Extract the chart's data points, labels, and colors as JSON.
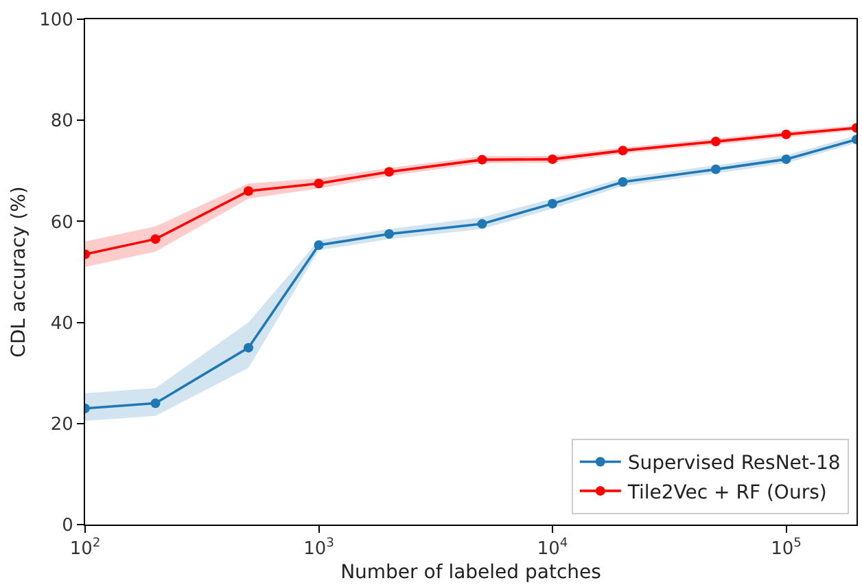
{
  "chart_data": {
    "type": "line",
    "xlabel": "Number of labeled patches",
    "ylabel": "CDL accuracy (%)",
    "log": "x",
    "x": [
      100,
      200,
      500,
      1000,
      2000,
      5000,
      10000,
      20000,
      50000,
      100000,
      200000
    ],
    "xlim": [
      100,
      200000
    ],
    "xticks": [
      {
        "value": 100,
        "label": "10$^{2}$"
      },
      {
        "value": 1000,
        "label": "10$^{3}$"
      },
      {
        "value": 10000,
        "label": "10$^{4}$"
      },
      {
        "value": 100000,
        "label": "10$^{5}$"
      }
    ],
    "ylim": [
      0,
      100
    ],
    "yticks": [
      0,
      20,
      40,
      60,
      80,
      100
    ],
    "legend": "bottom right",
    "marker": "circle",
    "line_style": "solid",
    "series": [
      {
        "name": "Supervised ResNet-18",
        "color": "#1f77b4",
        "values": [
          23,
          24,
          35,
          55.3,
          57.5,
          59.5,
          63.5,
          67.8,
          70.3,
          72.3,
          76.2
        ],
        "lower": [
          20.5,
          21.5,
          31,
          54.3,
          56.5,
          58.5,
          62.5,
          67,
          69.5,
          71.5,
          75.5
        ],
        "upper": [
          26,
          27,
          40,
          56.3,
          58.5,
          60.8,
          64.5,
          68.6,
          71.1,
          73.1,
          77
        ]
      },
      {
        "name": "Tile2Vec + RF (Ours)",
        "color": "#ff0000",
        "values": [
          53.5,
          56.5,
          66,
          67.5,
          69.8,
          72.2,
          72.3,
          74,
          75.8,
          77.2,
          78.5
        ],
        "lower": [
          51,
          54,
          64.5,
          66.5,
          69,
          71.5,
          71.6,
          73.4,
          75.2,
          76.6,
          78
        ],
        "upper": [
          56,
          59,
          67.5,
          68.5,
          70.6,
          72.9,
          73,
          74.6,
          76.4,
          77.8,
          79
        ]
      }
    ]
  }
}
